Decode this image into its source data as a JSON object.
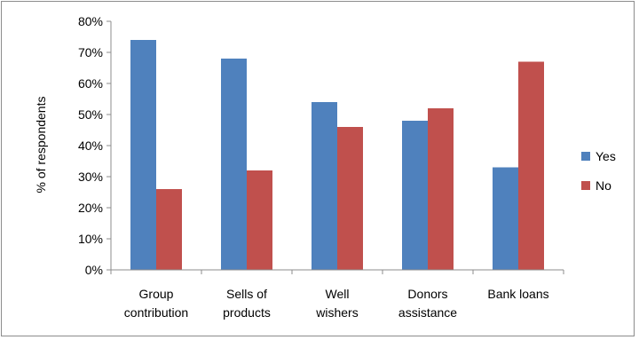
{
  "chart_data": {
    "type": "bar",
    "title": "",
    "xlabel": "",
    "ylabel": "% of respondents",
    "ylim": [
      0,
      80
    ],
    "yticks": [
      "0%",
      "10%",
      "20%",
      "30%",
      "40%",
      "50%",
      "60%",
      "70%",
      "80%"
    ],
    "categories": [
      [
        "Group",
        "contribution"
      ],
      [
        "Sells of",
        "products"
      ],
      [
        "Well",
        "wishers"
      ],
      [
        "Donors",
        "assistance"
      ],
      [
        "Bank loans"
      ]
    ],
    "series": [
      {
        "name": "Yes",
        "color": "#4f81bd",
        "values": [
          74,
          68,
          54,
          48,
          33
        ]
      },
      {
        "name": "No",
        "color": "#c0504d",
        "values": [
          26,
          32,
          46,
          52,
          67
        ]
      }
    ],
    "grid": false,
    "legend_position": "right"
  }
}
